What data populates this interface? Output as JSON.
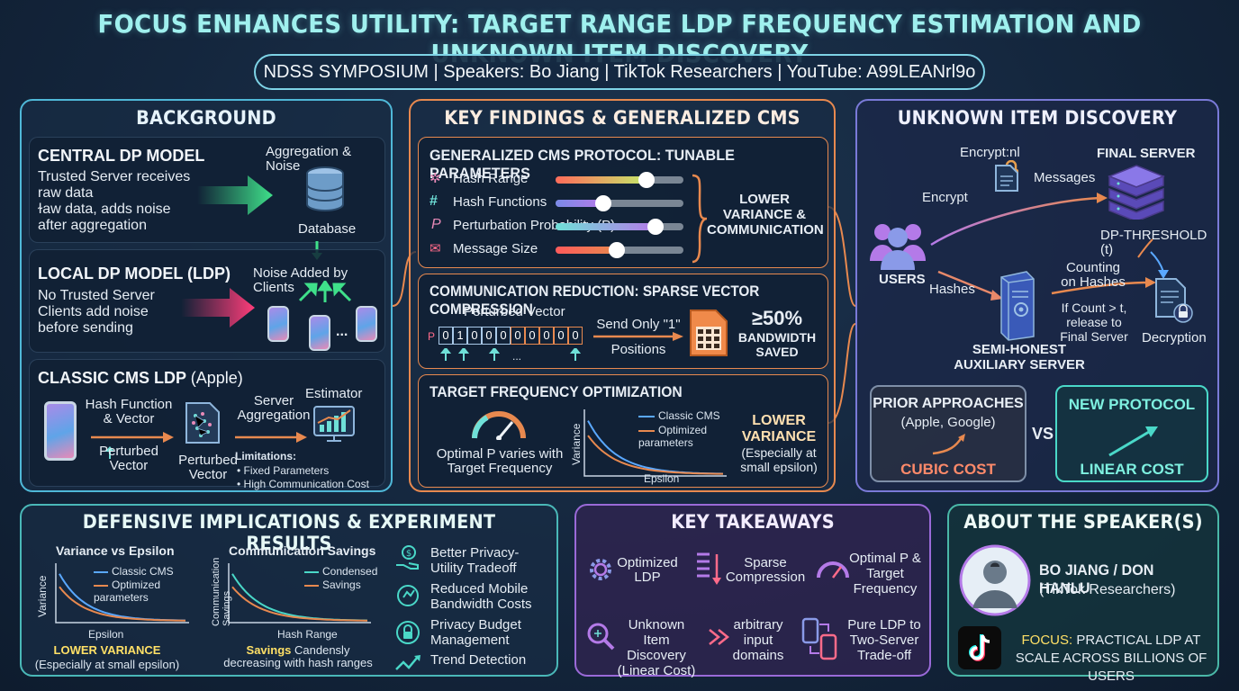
{
  "header": {
    "title": "FOCUS ENHANCES UTILITY: TARGET RANGE LDP FREQUENCY ESTIMATION AND UNKNOWN ITEM DISCOVERY",
    "subtitle": "NDSS SYMPOSIUM | Speakers: Bo Jiang | TikTok Researchers | YouTube: A99LEANrl9o"
  },
  "background": {
    "title": "BACKGROUND",
    "central": {
      "heading": "CENTRAL DP MODEL",
      "lines": [
        "Trusted Server receives",
        "raw data",
        "ɫaw data, adds noise",
        "after aggregation"
      ],
      "agg_label": "Aggregation & Noise",
      "db_label": "Database"
    },
    "local": {
      "heading": "LOCAL DP MODEL (LDP)",
      "lines": [
        "No Trusted Server",
        "Clients add noise",
        "before sending"
      ],
      "noise_label": "Noise Added by Clients",
      "dots": "..."
    },
    "cms": {
      "heading": "CLASSIC CMS LDP",
      "heading_suffix": "(Apple)",
      "hash_label": "Hash Function & Vector",
      "perturbed1": "Perturbed Vector",
      "perturbed2": "Perturbed Vector",
      "server_label": "Server Aggregation",
      "estimator": "Estimator",
      "limits_title": "Limitations:",
      "limits": [
        "Fixed Parameters",
        "High Communication Cost"
      ]
    }
  },
  "findings": {
    "title": "KEY FINDINGS & GENERALIZED CMS",
    "protocol": {
      "heading": "GENERALIZED CMS PROTOCOL: TUNABLE PARAMETERS",
      "params": [
        {
          "label": "Hash Range",
          "level": 0.71
        },
        {
          "label": "Hash Functions",
          "level": 0.37
        },
        {
          "label": "Perturbation Probability (P)",
          "level": 0.78
        },
        {
          "label": "Message Size",
          "level": 0.48
        }
      ],
      "result": "LOWER VARIANCE & COMMUNICATION"
    },
    "comm": {
      "heading": "COMMUNICATION REDUCTION: SPARSE VECTOR COMPRESSION",
      "vector_label": "Perturbed Vector",
      "p": "P",
      "bits": [
        "0",
        "1",
        "0",
        "0",
        "0",
        "0",
        "0",
        "0",
        "0",
        "0"
      ],
      "dots": "...",
      "send": "Send Only \"1\" Positions",
      "pct": "≥50%",
      "saved": "BANDWIDTH SAVED"
    },
    "target": {
      "heading": "TARGET FREQUENCY OPTIMIZATION",
      "gauge_text": "Optimal P varies with Target Frequency",
      "legend": [
        "Classic CMS",
        "Optimized parameters"
      ],
      "ylabel": "Variance",
      "xlabel": "Epsilon",
      "result_title": "LOWER VARIANCE",
      "result_sub": "(Especially at small epsilon)"
    }
  },
  "discovery": {
    "title": "UNKNOWN ITEM DISCOVERY",
    "encrypt_top": "Encrypt:nl",
    "encrypt": "Encrypt",
    "messages": "Messages",
    "final_server": "FINAL SERVER",
    "dp_threshold": "DP-THRESHOLD (t)",
    "users": "USERS",
    "hashes": "Hashes",
    "counting": "Counting on Hashes",
    "if_count": "If Count > t, release to Final Server",
    "decryption": "Decryption",
    "aux": "SEMI-HONEST AUXILIARY SERVER",
    "prior": {
      "title": "PRIOR APPROACHES",
      "sub": "(Apple, Google)",
      "cost": "CUBIC COST"
    },
    "vs": "VS",
    "new": {
      "title": "NEW PROTOCOL",
      "cost": "LINEAR COST"
    }
  },
  "defensive": {
    "title": "DEFENSIVE IMPLICATIONS & EXPERIMENT RESULTS",
    "chart1": {
      "title": "Variance vs Epsilon",
      "legend": [
        "Classic CMS",
        "Optimized parameters"
      ],
      "ylabel": "Variance",
      "xlabel": "Epsilon",
      "caption_title": "LOWER VARIANCE",
      "caption_sub": "(Especially at small epsilon)"
    },
    "chart2": {
      "title": "Communication Savings",
      "legend": [
        "Condensed",
        "Savings"
      ],
      "ylabel": "Communication Savings",
      "xlabel": "Hash Range",
      "caption_a": "Savings",
      "caption_b": "Candensly decreasing with hash ranges"
    },
    "items": [
      "Better Privacy-Utility Tradeoff",
      "Reduced Mobile Bandwidth Costs",
      "Privacy Budget Management",
      "Trend Detection"
    ]
  },
  "takeaways": {
    "title": "KEY TAKEAWAYS",
    "items": [
      "Optimized LDP",
      "Sparse Compression",
      "Optimal P & Target Frequency",
      "Unknown Item Discovery (Linear Cost)",
      "arbitrary input domains",
      "Pure LDP to Two-Server Trade-off"
    ]
  },
  "speaker": {
    "title": "ABOUT THE SPEAKER(S)",
    "name": "BO JIANG / DON HANLU",
    "affil": "(TikTok Researchers)",
    "focus_label": "FOCUS:",
    "focus_text": "PRACTICAL LDP AT SCALE ACROSS BILLIONS OF USERS"
  },
  "colors": {
    "accent_teal": "#6fe0d8",
    "accent_orange": "#e8894f",
    "accent_purple": "#9a6ad8",
    "green": "#3fe08a",
    "pink": "#ff3d7a"
  }
}
